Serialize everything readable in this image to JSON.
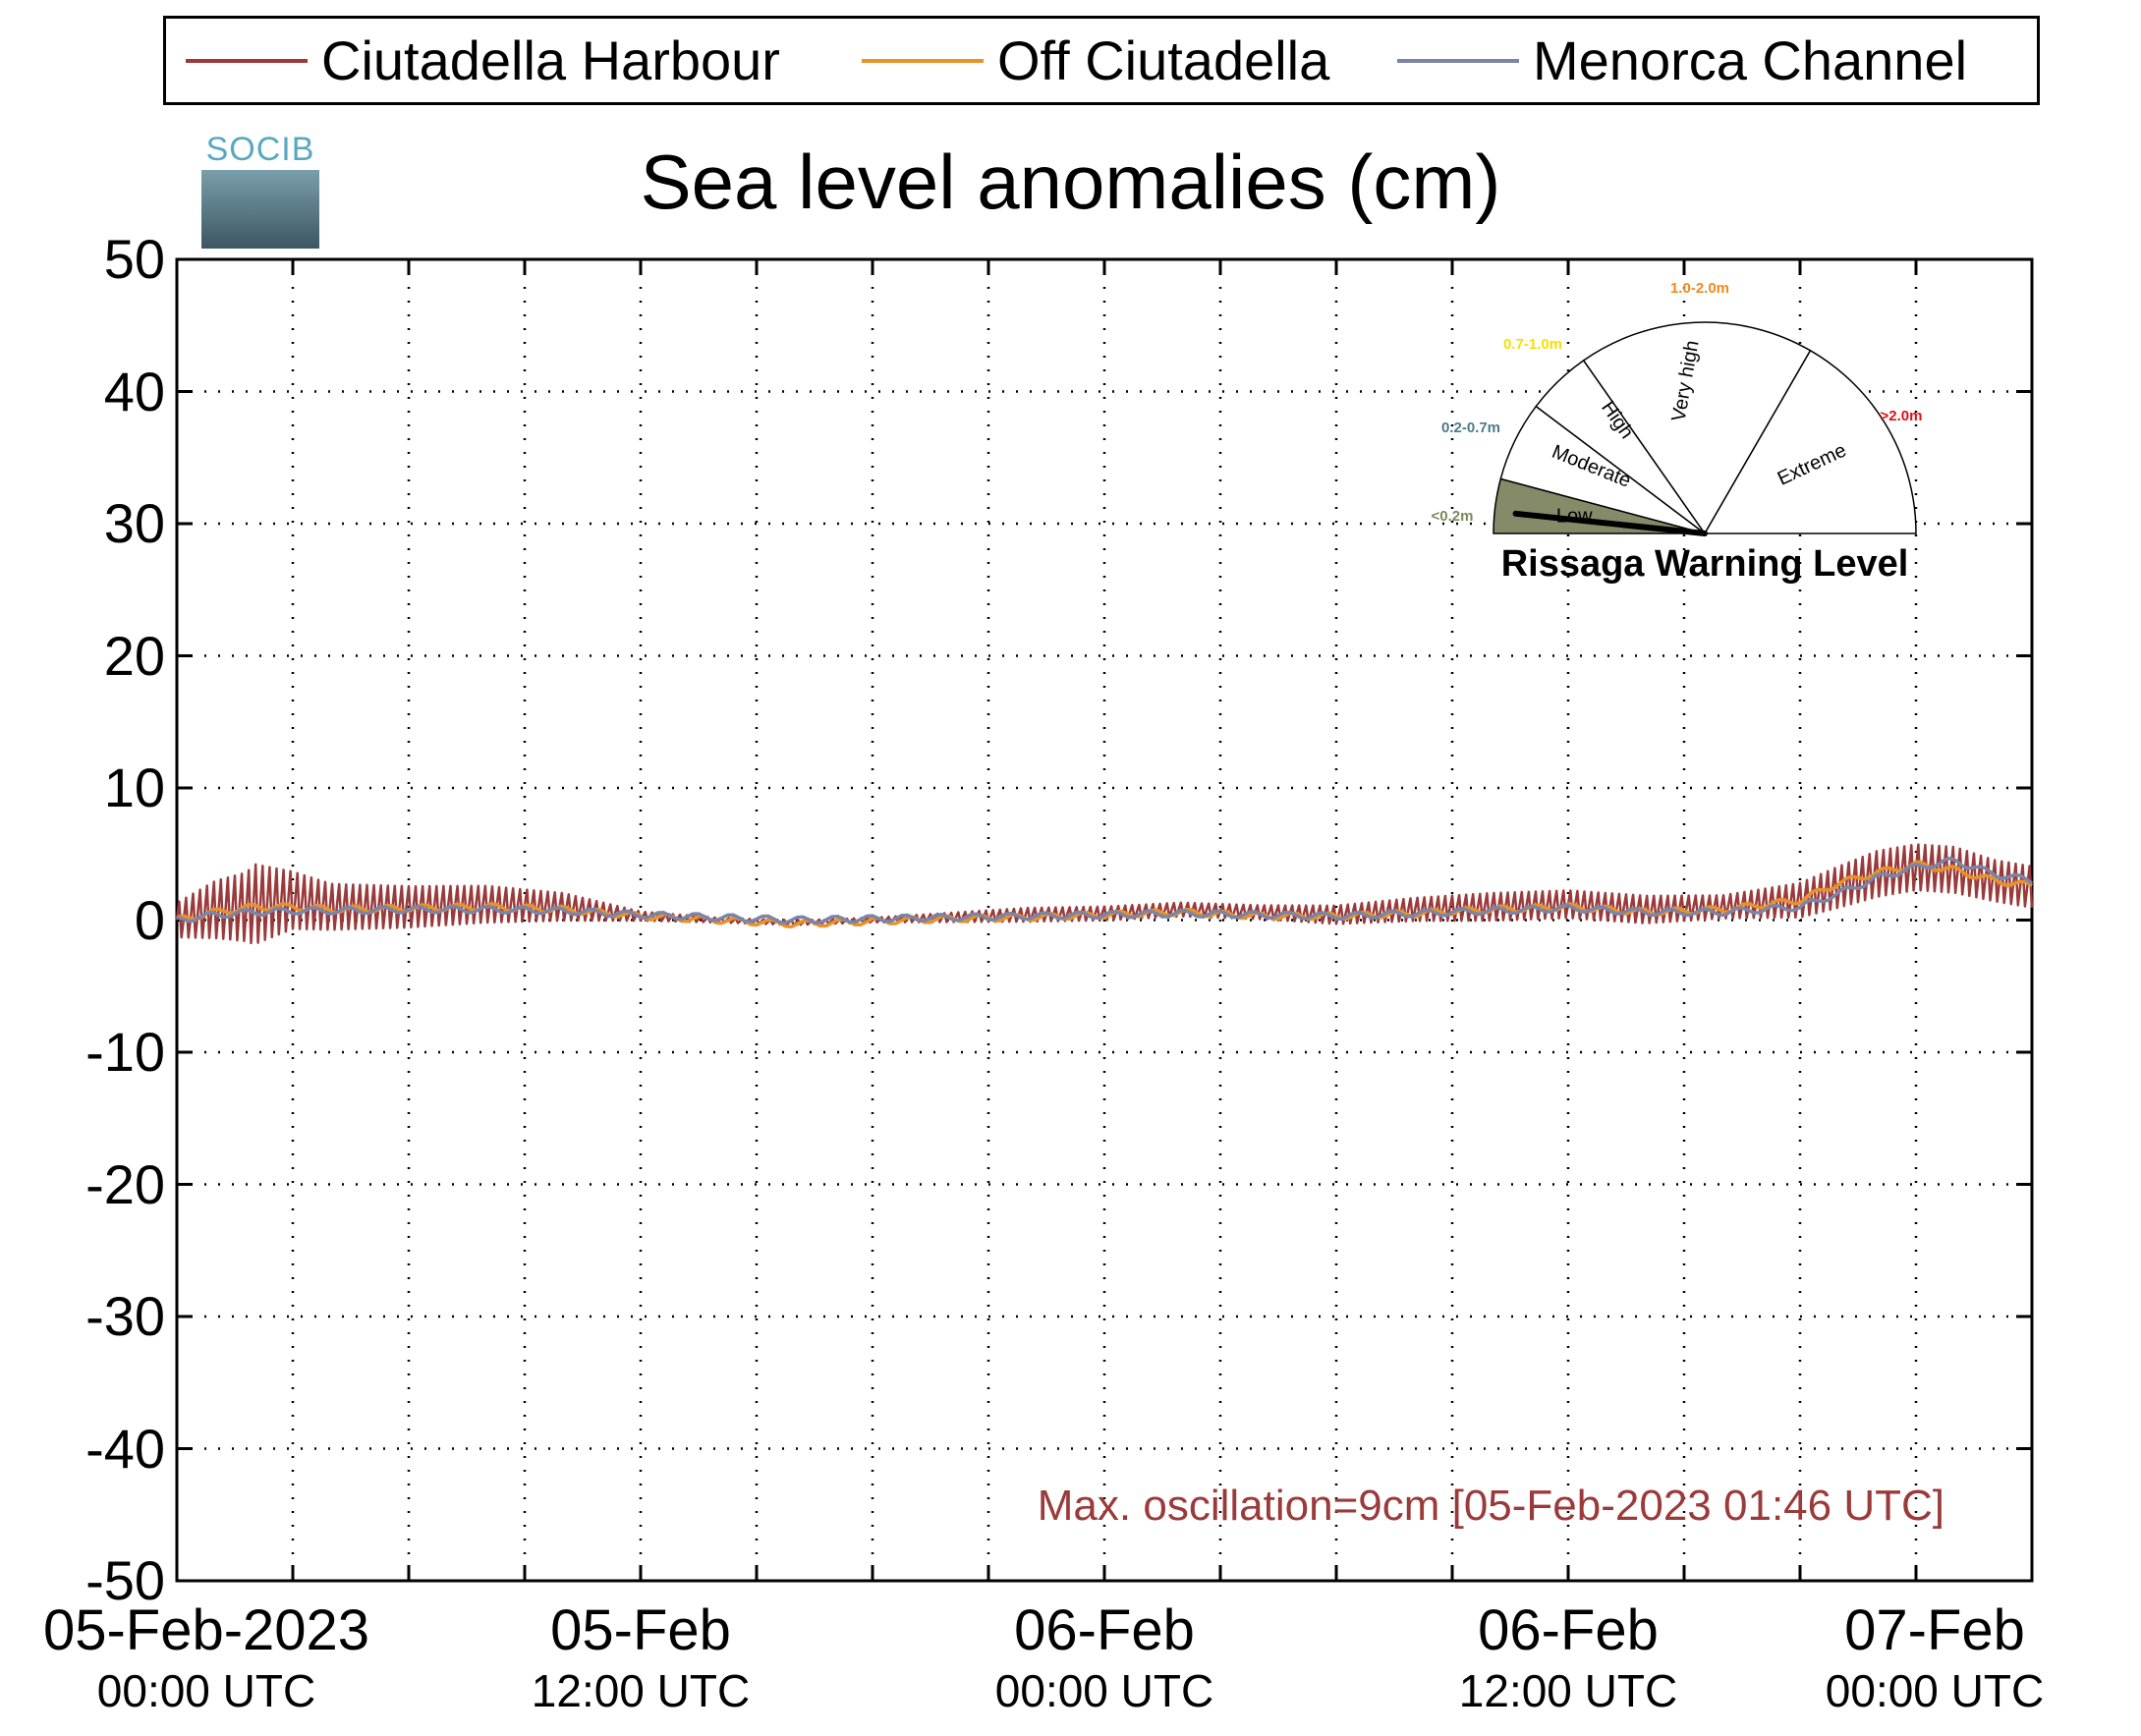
{
  "title": "Sea level anomalies (cm)",
  "logo_text": "SOCIB",
  "legend": [
    {
      "label": "Ciutadella Harbour",
      "color": "#9b3a3a"
    },
    {
      "label": "Off Ciutadella",
      "color": "#e8922a"
    },
    {
      "label": "Menorca Channel",
      "color": "#7a85a8"
    }
  ],
  "annotation": "Max. oscillation=9cm [05-Feb-2023 01:46 UTC]",
  "gauge": {
    "title": "Rissaga Warning Level",
    "current_level": "Low",
    "sectors": [
      {
        "name": "Low",
        "range": "<0.2m",
        "range_color": "#7a8a5a",
        "fill": "#858a69"
      },
      {
        "name": "Moderate",
        "range": "0.2-0.7m",
        "range_color": "#4d7a8a",
        "fill": "#ffffff"
      },
      {
        "name": "High",
        "range": "0.7-1.0m",
        "range_color": "#f2e200",
        "fill": "#ffffff"
      },
      {
        "name": "Very high",
        "range": "1.0-2.0m",
        "range_color": "#f08a1c",
        "fill": "#ffffff"
      },
      {
        "name": "Extreme",
        "range": ">2.0m",
        "range_color": "#e01010",
        "fill": "#ffffff"
      }
    ]
  },
  "x_ticks": [
    {
      "date": "05-Feb-2023",
      "time": "00:00 UTC"
    },
    {
      "date": "05-Feb",
      "time": "12:00 UTC"
    },
    {
      "date": "06-Feb",
      "time": "00:00 UTC"
    },
    {
      "date": "06-Feb",
      "time": "12:00 UTC"
    },
    {
      "date": "07-Feb",
      "time": "00:00 UTC"
    }
  ],
  "chart_data": {
    "type": "line",
    "title": "Sea level anomalies (cm)",
    "xlabel": "",
    "ylabel": "",
    "x_unit": "hours since 05-Feb-2023 00:00 UTC",
    "xlim": [
      0,
      48
    ],
    "ylim": [
      -50,
      50
    ],
    "y_ticks": [
      50,
      40,
      30,
      20,
      10,
      0,
      -10,
      -20,
      -30,
      -40,
      -50
    ],
    "grid": true,
    "legend_position": "top",
    "series": [
      {
        "name": "Ciutadella Harbour",
        "color": "#9b3a3a",
        "x": [
          0,
          1,
          1.8,
          2,
          3,
          4,
          6,
          8,
          10,
          12,
          14,
          16,
          18,
          20,
          22,
          24,
          26,
          28,
          30,
          32,
          34,
          36,
          38,
          40,
          42,
          43,
          44,
          45,
          46,
          47,
          48
        ],
        "y": [
          0,
          0.8,
          1.0,
          1.2,
          1.5,
          1.0,
          1.0,
          1.2,
          1.0,
          0.3,
          0.0,
          -0.2,
          0.0,
          0.2,
          0.4,
          0.5,
          0.8,
          0.6,
          0.4,
          0.8,
          1.0,
          1.2,
          0.8,
          1.0,
          1.5,
          2.5,
          3.5,
          4.0,
          3.8,
          3.0,
          2.5
        ],
        "oscillation_amplitude": [
          1.5,
          2.5,
          3.0,
          3.5,
          2.5,
          2.0,
          1.8,
          1.6,
          1.2,
          0.4,
          0.2,
          0.2,
          0.2,
          0.4,
          0.6,
          0.6,
          0.6,
          0.6,
          0.8,
          1.0,
          1.2,
          1.2,
          1.2,
          1.0,
          1.5,
          1.8,
          2.0,
          2.0,
          2.0,
          1.8,
          1.8
        ]
      },
      {
        "name": "Off Ciutadella",
        "color": "#e8922a",
        "x": [
          0,
          1,
          2,
          3,
          4,
          6,
          8,
          10,
          12,
          14,
          16,
          18,
          20,
          22,
          24,
          26,
          28,
          30,
          32,
          34,
          36,
          38,
          40,
          42,
          43,
          44,
          45,
          46,
          47,
          48
        ],
        "y": [
          0,
          0.6,
          1.0,
          1.0,
          0.8,
          0.9,
          1.0,
          0.8,
          0.3,
          0.0,
          -0.3,
          -0.1,
          0.1,
          0.2,
          0.4,
          0.6,
          0.3,
          0.3,
          0.5,
          0.8,
          1.0,
          0.6,
          0.8,
          1.5,
          2.8,
          3.6,
          4.2,
          3.8,
          3.0,
          2.6
        ]
      },
      {
        "name": "Menorca Channel",
        "color": "#7a85a8",
        "x": [
          0,
          1,
          2,
          3,
          4,
          6,
          8,
          10,
          12,
          14,
          16,
          18,
          20,
          22,
          24,
          26,
          28,
          30,
          32,
          34,
          36,
          38,
          40,
          42,
          43,
          44,
          45,
          46,
          47,
          48
        ],
        "y": [
          0,
          0.4,
          0.6,
          0.7,
          0.7,
          0.8,
          0.8,
          0.7,
          0.4,
          0.2,
          0.0,
          0.1,
          0.2,
          0.3,
          0.4,
          0.5,
          0.4,
          0.3,
          0.5,
          0.7,
          0.9,
          0.6,
          0.6,
          1.0,
          2.0,
          3.2,
          4.0,
          4.5,
          3.5,
          3.0
        ]
      }
    ]
  }
}
